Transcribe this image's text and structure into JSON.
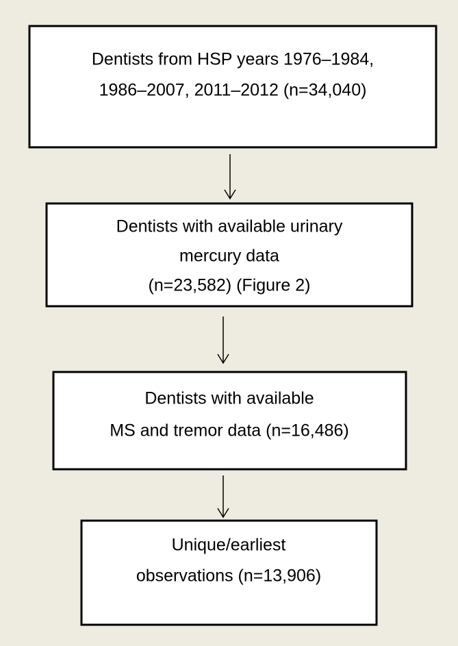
{
  "nodes": [
    {
      "lines": [
        "Dentists from HSP years 1976–1984,",
        "1986–2007, 2011–2012 (n=34,040)"
      ]
    },
    {
      "lines": [
        "Dentists with available urinary",
        "mercury data",
        "(n=23,582) (Figure 2)"
      ]
    },
    {
      "lines": [
        "Dentists with available",
        "MS and tremor data (n=16,486)"
      ]
    },
    {
      "lines": [
        "Unique/earliest",
        "observations (n=13,906)"
      ]
    }
  ]
}
